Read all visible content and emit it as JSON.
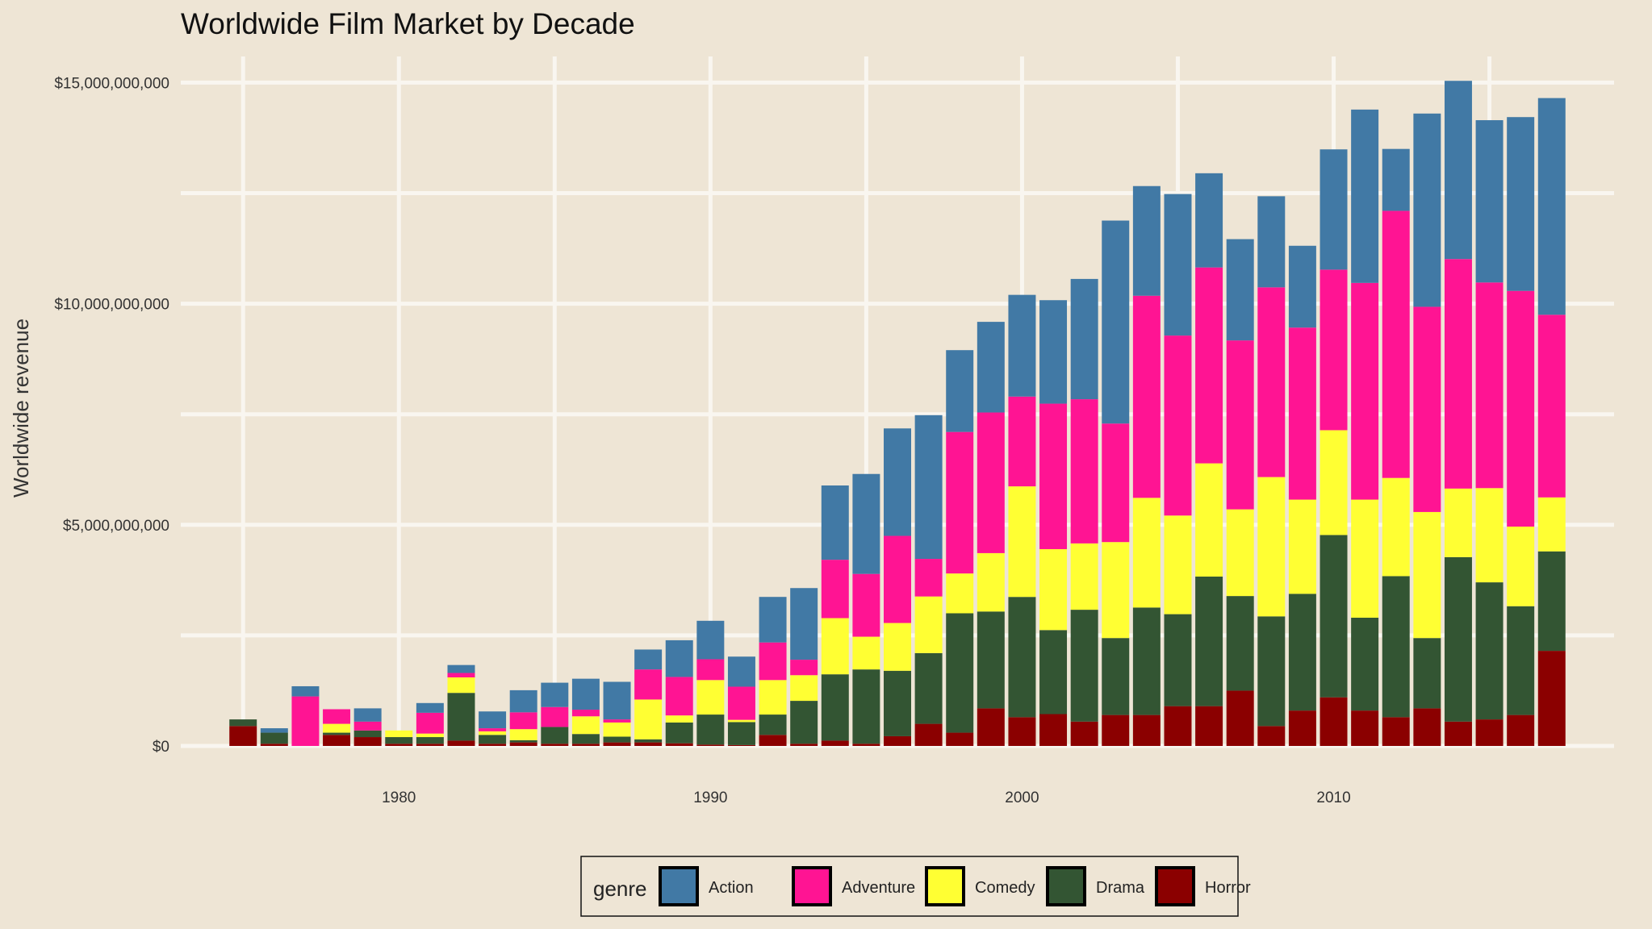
{
  "chart_data": {
    "type": "bar",
    "stacked": true,
    "title": "Worldwide Film Market by Decade",
    "xlabel": "",
    "ylabel": "Worldwide revenue",
    "ylim": [
      0,
      15500000000
    ],
    "xlim": [
      1973,
      2019
    ],
    "y_ticks": [
      {
        "value": 0,
        "label": "$0"
      },
      {
        "value": 5000000000,
        "label": "$5,000,000,000"
      },
      {
        "value": 10000000000,
        "label": "$10,000,000,000"
      },
      {
        "value": 15000000000,
        "label": "$15,000,000,000"
      }
    ],
    "x_ticks": [
      {
        "value": 1980,
        "label": "1980"
      },
      {
        "value": 1990,
        "label": "1990"
      },
      {
        "value": 2000,
        "label": "2000"
      },
      {
        "value": 2010,
        "label": "2010"
      }
    ],
    "grid": true,
    "legend": {
      "position": "bottom",
      "title": "genre"
    },
    "x": [
      1975,
      1976,
      1977,
      1978,
      1979,
      1980,
      1981,
      1982,
      1983,
      1984,
      1985,
      1986,
      1987,
      1988,
      1989,
      1990,
      1991,
      1992,
      1993,
      1994,
      1995,
      1996,
      1997,
      1998,
      1999,
      2000,
      2001,
      2002,
      2003,
      2004,
      2005,
      2006,
      2007,
      2008,
      2009,
      2010,
      2011,
      2012,
      2013,
      2014,
      2015,
      2016,
      2017
    ],
    "series": [
      {
        "name": "Horror",
        "color": "#8B0000",
        "values": [
          450000000,
          50000000,
          0,
          250000000,
          200000000,
          50000000,
          50000000,
          120000000,
          50000000,
          80000000,
          50000000,
          50000000,
          80000000,
          80000000,
          60000000,
          30000000,
          20000000,
          250000000,
          50000000,
          120000000,
          50000000,
          220000000,
          500000000,
          300000000,
          850000000,
          650000000,
          720000000,
          550000000,
          700000000,
          700000000,
          900000000,
          900000000,
          1250000000,
          450000000,
          800000000,
          1100000000,
          800000000,
          650000000,
          850000000,
          550000000,
          600000000,
          700000000,
          2150000000
        ]
      },
      {
        "name": "Drama",
        "color": "#335533",
        "values": [
          150000000,
          250000000,
          0,
          50000000,
          150000000,
          150000000,
          150000000,
          1080000000,
          200000000,
          50000000,
          380000000,
          220000000,
          130000000,
          70000000,
          470000000,
          680000000,
          520000000,
          460000000,
          970000000,
          1500000000,
          1680000000,
          1480000000,
          1600000000,
          2700000000,
          2190000000,
          2720000000,
          1900000000,
          2530000000,
          1740000000,
          2430000000,
          2080000000,
          2930000000,
          2140000000,
          2480000000,
          2640000000,
          3670000000,
          2100000000,
          3190000000,
          1590000000,
          3720000000,
          3100000000,
          2460000000,
          2250000000
        ]
      },
      {
        "name": "Comedy",
        "color": "#FFFF33",
        "values": [
          0,
          0,
          0,
          200000000,
          0,
          150000000,
          80000000,
          350000000,
          80000000,
          250000000,
          0,
          400000000,
          320000000,
          900000000,
          160000000,
          780000000,
          50000000,
          780000000,
          580000000,
          1270000000,
          740000000,
          1080000000,
          1280000000,
          900000000,
          1320000000,
          2500000000,
          1830000000,
          1500000000,
          2170000000,
          2480000000,
          2230000000,
          2560000000,
          1960000000,
          3150000000,
          2130000000,
          2370000000,
          2670000000,
          2220000000,
          2850000000,
          1550000000,
          2130000000,
          1800000000,
          1220000000
        ]
      },
      {
        "name": "Adventure",
        "color": "#FF1493",
        "values": [
          0,
          0,
          1120000000,
          330000000,
          200000000,
          0,
          470000000,
          100000000,
          70000000,
          380000000,
          450000000,
          150000000,
          70000000,
          680000000,
          870000000,
          470000000,
          750000000,
          850000000,
          350000000,
          1320000000,
          1420000000,
          1970000000,
          850000000,
          3200000000,
          3180000000,
          2030000000,
          3290000000,
          3260000000,
          2680000000,
          4570000000,
          4070000000,
          4430000000,
          3820000000,
          4290000000,
          3890000000,
          3630000000,
          4900000000,
          6040000000,
          4640000000,
          5190000000,
          4650000000,
          5330000000,
          4130000000
        ]
      },
      {
        "name": "Action",
        "color": "#4179A5",
        "values": [
          0,
          100000000,
          230000000,
          0,
          300000000,
          0,
          220000000,
          180000000,
          380000000,
          500000000,
          550000000,
          700000000,
          850000000,
          450000000,
          830000000,
          870000000,
          680000000,
          1030000000,
          1620000000,
          1680000000,
          2260000000,
          2430000000,
          3250000000,
          1850000000,
          2050000000,
          2300000000,
          2340000000,
          2720000000,
          4590000000,
          2480000000,
          3200000000,
          2130000000,
          2290000000,
          2060000000,
          1850000000,
          2720000000,
          3920000000,
          1400000000,
          4370000000,
          4030000000,
          3670000000,
          3930000000,
          4900000000
        ]
      }
    ]
  }
}
